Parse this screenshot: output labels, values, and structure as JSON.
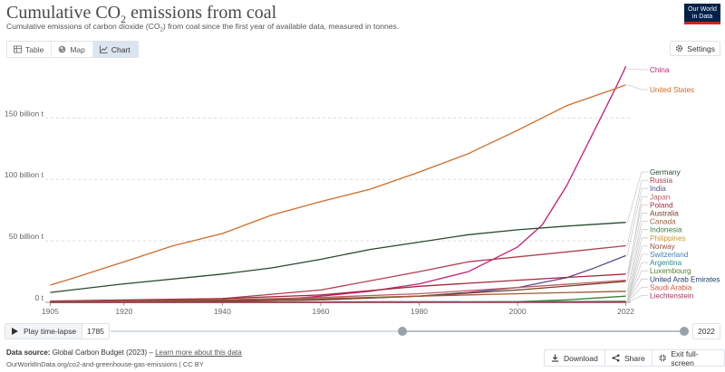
{
  "header": {
    "title_main": "Cumulative CO",
    "title_sub": "2",
    "title_tail": " emissions from coal",
    "subtitle_main": "Cumulative emissions of carbon dioxide (CO",
    "subtitle_sub": "2",
    "subtitle_tail": ") from coal since the first year of available data, measured in tonnes.",
    "logo_line1": "Our World",
    "logo_line2": "in Data"
  },
  "tabs": [
    {
      "label": "Table",
      "icon": "table-icon",
      "active": false
    },
    {
      "label": "Map",
      "icon": "globe-icon",
      "active": false
    },
    {
      "label": "Chart",
      "icon": "line-chart-icon",
      "active": true
    }
  ],
  "settings_label": "Settings",
  "chart_data": {
    "type": "line",
    "xlim": [
      1904,
      2023
    ],
    "ylim": [
      0,
      190
    ],
    "ylabel": "",
    "xlabel": "",
    "x_ticks": [
      1905,
      1920,
      1940,
      1960,
      1980,
      2000,
      2022
    ],
    "y_ticks": [
      {
        "value": 0,
        "label": "0 t"
      },
      {
        "value": 50,
        "label": "50 billion t"
      },
      {
        "value": 100,
        "label": "100 billion t"
      },
      {
        "value": 150,
        "label": "150 billion t"
      }
    ],
    "unit": "billion tonnes",
    "grid": "horizontal",
    "legend": "right, direct labels",
    "series": [
      {
        "name": "China",
        "color": "#c41e79",
        "x": [
          1905,
          1920,
          1940,
          1950,
          1960,
          1970,
          1980,
          1990,
          2000,
          2005,
          2010,
          2015,
          2020,
          2022
        ],
        "y": [
          0.1,
          0.4,
          1,
          1.8,
          5,
          9,
          15,
          25,
          45,
          63,
          95,
          135,
          175,
          192
        ]
      },
      {
        "name": "United States",
        "color": "#cf6b2a",
        "x": [
          1905,
          1910,
          1920,
          1930,
          1940,
          1950,
          1960,
          1970,
          1980,
          1990,
          2000,
          2010,
          2020,
          2022
        ],
        "y": [
          14,
          20,
          33,
          46,
          56,
          71,
          82,
          92,
          106,
          121,
          140,
          160,
          174,
          177
        ]
      },
      {
        "name": "Germany",
        "color": "#264a2e",
        "x": [
          1905,
          1920,
          1940,
          1950,
          1960,
          1970,
          1980,
          1990,
          2000,
          2010,
          2022
        ],
        "y": [
          8,
          15,
          23,
          28,
          35,
          43,
          49,
          55,
          59,
          62,
          65
        ]
      },
      {
        "name": "Russia",
        "color": "#b13e4f",
        "x": [
          1905,
          1920,
          1940,
          1960,
          1980,
          1990,
          2000,
          2010,
          2022
        ],
        "y": [
          0.5,
          1,
          3,
          10,
          25,
          33,
          37,
          41,
          46
        ]
      },
      {
        "name": "India",
        "color": "#5b4a8b",
        "x": [
          1905,
          1940,
          1960,
          1980,
          1990,
          2000,
          2010,
          2015,
          2022
        ],
        "y": [
          0.2,
          1,
          2,
          5,
          8,
          12,
          20,
          27,
          38
        ]
      },
      {
        "name": "Japan",
        "color": "#bb5c67",
        "x": [
          1905,
          1940,
          1960,
          1980,
          2000,
          2022
        ],
        "y": [
          0.3,
          2,
          4,
          7,
          12,
          18
        ]
      },
      {
        "name": "Poland",
        "color": "#a3273a",
        "x": [
          1905,
          1940,
          1960,
          1980,
          2000,
          2022
        ],
        "y": [
          1,
          3,
          6,
          13,
          18,
          23
        ]
      },
      {
        "name": "Australia",
        "color": "#7b3c23",
        "x": [
          1905,
          1940,
          1960,
          1980,
          2000,
          2022
        ],
        "y": [
          0.2,
          1,
          2,
          5,
          10,
          17
        ]
      },
      {
        "name": "Canada",
        "color": "#9a5d3a",
        "x": [
          1905,
          1940,
          1960,
          1980,
          2000,
          2022
        ],
        "y": [
          0.5,
          2,
          3,
          5,
          7,
          9
        ]
      },
      {
        "name": "Indonesia",
        "color": "#38813a",
        "x": [
          1905,
          1980,
          2000,
          2010,
          2022
        ],
        "y": [
          0,
          0.1,
          0.5,
          2,
          5
        ]
      },
      {
        "name": "Philippines",
        "color": "#c99a2e",
        "x": [
          1905,
          1980,
          2000,
          2022
        ],
        "y": [
          0,
          0,
          0.2,
          1
        ]
      },
      {
        "name": "Norway",
        "color": "#9c4e35",
        "x": [
          1905,
          1960,
          2022
        ],
        "y": [
          0.1,
          0.3,
          0.5
        ]
      },
      {
        "name": "Switzerland",
        "color": "#3f7fb0",
        "x": [
          1905,
          1960,
          2022
        ],
        "y": [
          0.1,
          0.3,
          0.5
        ]
      },
      {
        "name": "Argentina",
        "color": "#2e8a86",
        "x": [
          1905,
          1960,
          2022
        ],
        "y": [
          0,
          0.2,
          0.4
        ]
      },
      {
        "name": "Luxembourg",
        "color": "#5e7f2e",
        "x": [
          1905,
          1960,
          2022
        ],
        "y": [
          0,
          0.1,
          0.2
        ]
      },
      {
        "name": "United Arab Emirates",
        "color": "#1f3d6b",
        "x": [
          1905,
          2000,
          2022
        ],
        "y": [
          0,
          0,
          0.1
        ]
      },
      {
        "name": "Saudi Arabia",
        "color": "#d0593f",
        "x": [
          1905,
          2022
        ],
        "y": [
          0,
          0
        ]
      },
      {
        "name": "Liechtenstein",
        "color": "#a33b5b",
        "x": [
          1905,
          2022
        ],
        "y": [
          0,
          0
        ]
      }
    ]
  },
  "timeline": {
    "play_label": "Play time-lapse",
    "start_year": "1785",
    "end_year": "2022"
  },
  "footer": {
    "source_label": "Data source:",
    "source_text": " Global Carbon Budget (2023) – ",
    "learn_more": "Learn more about this data",
    "url": "OurWorldInData.org/co2-and-greenhouse-gas-emissions | CC BY"
  },
  "buttons": {
    "download": "Download",
    "share": "Share",
    "fullscreen": "Exit full-screen"
  }
}
